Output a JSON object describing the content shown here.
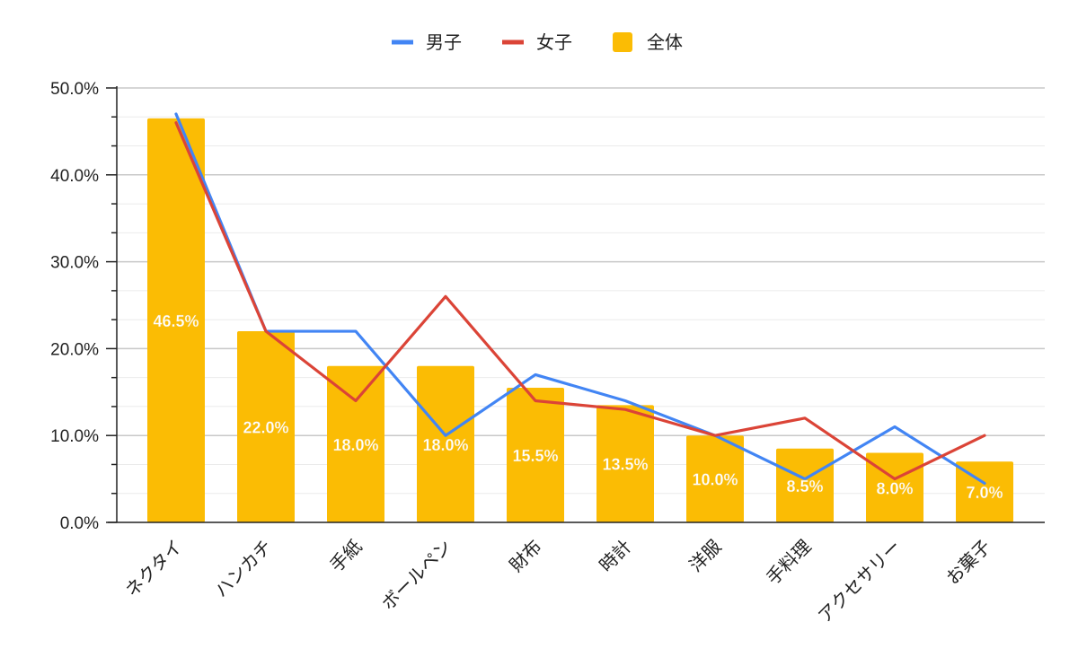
{
  "chart_data": {
    "type": "bar",
    "categories": [
      "ネクタイ",
      "ハンカチ",
      "手紙",
      "ボールペン",
      "財布",
      "時計",
      "洋服",
      "手料理",
      "アクセサリー",
      "お菓子"
    ],
    "ylim": [
      0,
      50
    ],
    "yticks": [
      "0.0%",
      "10.0%",
      "20.0%",
      "30.0%",
      "40.0%",
      "50.0%"
    ],
    "legend_position": "top-center",
    "grid": true,
    "series": [
      {
        "name": "男子",
        "type": "line",
        "color": "#4285f4",
        "values": [
          47.0,
          22.0,
          22.0,
          10.0,
          17.0,
          14.0,
          10.0,
          5.0,
          11.0,
          4.5
        ]
      },
      {
        "name": "女子",
        "type": "line",
        "color": "#db4437",
        "values": [
          46.0,
          22.0,
          14.0,
          26.0,
          14.0,
          13.0,
          10.0,
          12.0,
          5.0,
          10.0
        ]
      },
      {
        "name": "全体",
        "type": "bar",
        "color": "#fbbc04",
        "values": [
          46.5,
          22.0,
          18.0,
          18.0,
          15.5,
          13.5,
          10.0,
          8.5,
          8.0,
          7.0
        ],
        "labels": [
          "46.5%",
          "22.0%",
          "18.0%",
          "18.0%",
          "15.5%",
          "13.5%",
          "10.0%",
          "8.5%",
          "8.0%",
          "7.0%"
        ]
      }
    ]
  }
}
